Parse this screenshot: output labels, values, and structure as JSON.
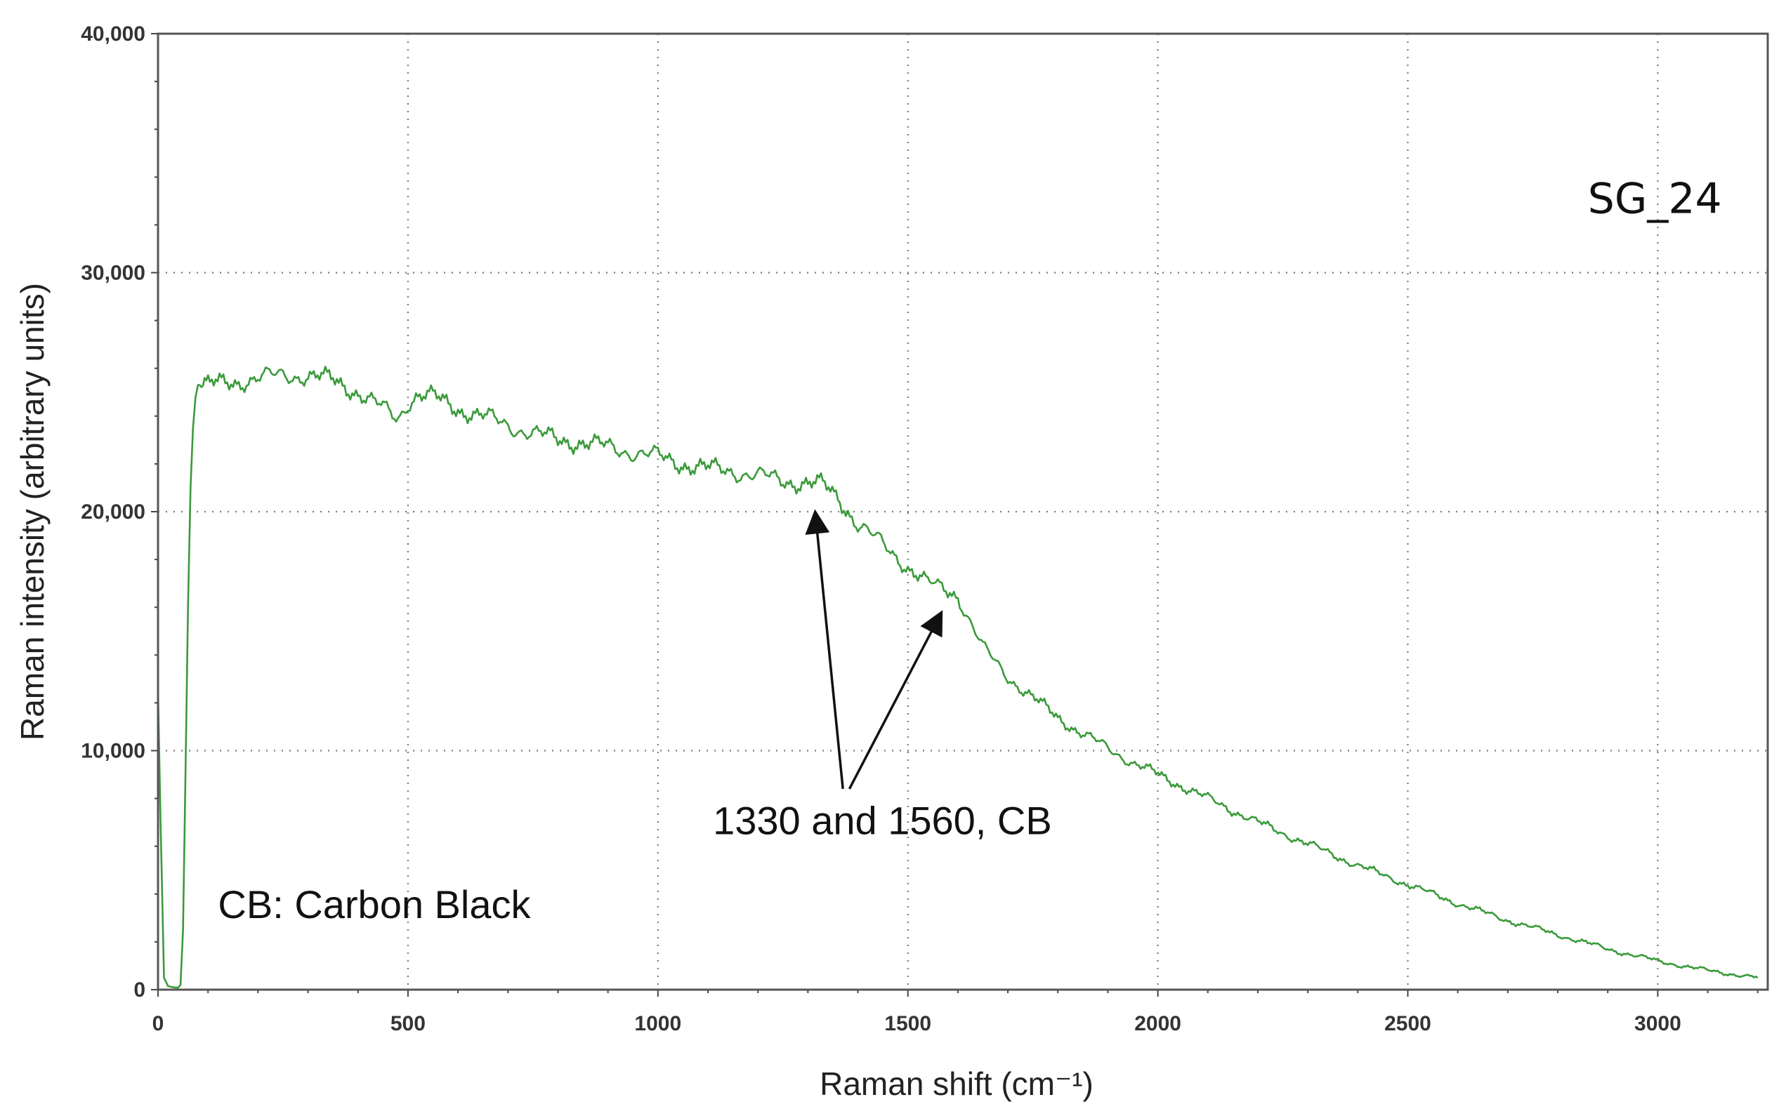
{
  "chart_data": {
    "type": "line",
    "title": "",
    "xlabel": "Raman shift (cm⁻¹)",
    "ylabel": "Raman intensity (arbitrary units)",
    "xlim": [
      0,
      3220
    ],
    "ylim": [
      0,
      40000
    ],
    "x_ticks": [
      0,
      500,
      1000,
      1500,
      2000,
      2500,
      3000
    ],
    "x_tick_labels": [
      "0",
      "500",
      "1000",
      "1500",
      "2000",
      "2500",
      "3000"
    ],
    "y_ticks": [
      0,
      10000,
      20000,
      30000,
      40000
    ],
    "y_tick_labels": [
      "0",
      "10,000",
      "20,000",
      "30,000",
      "40,000"
    ],
    "grid": true,
    "series": [
      {
        "name": "SG_24",
        "color": "#3a9a3a",
        "x": [
          0,
          5,
          12,
          20,
          30,
          40,
          45,
          50,
          55,
          60,
          65,
          70,
          75,
          80,
          90,
          100,
          150,
          200,
          250,
          300,
          350,
          400,
          450,
          480,
          500,
          520,
          550,
          600,
          650,
          700,
          750,
          800,
          850,
          900,
          950,
          1000,
          1050,
          1100,
          1150,
          1200,
          1250,
          1300,
          1330,
          1360,
          1400,
          1450,
          1500,
          1540,
          1580,
          1600,
          1620,
          1650,
          1700,
          1750,
          1800,
          1850,
          1900,
          1950,
          2000,
          2050,
          2100,
          2200,
          2300,
          2400,
          2500,
          2600,
          2700,
          2800,
          2900,
          3000,
          3100,
          3200
        ],
        "y": [
          12500,
          7000,
          500,
          150,
          100,
          80,
          200,
          2500,
          9000,
          16000,
          21000,
          23500,
          24800,
          25300,
          25300,
          25300,
          25400,
          25600,
          25700,
          25700,
          25500,
          25000,
          24300,
          23900,
          24600,
          24900,
          24800,
          24300,
          24000,
          23600,
          23300,
          23000,
          22900,
          22700,
          22500,
          22300,
          22000,
          21800,
          21700,
          21500,
          21300,
          21200,
          21100,
          20600,
          19500,
          18600,
          17700,
          17000,
          16700,
          16500,
          15600,
          14300,
          13100,
          12200,
          11400,
          10700,
          10100,
          9500,
          9000,
          8500,
          8000,
          7000,
          6100,
          5200,
          4400,
          3600,
          2900,
          2300,
          1700,
          1200,
          800,
          500
        ]
      }
    ],
    "annotations": [
      {
        "text": "SG_24",
        "x": 2860,
        "y": 32500
      },
      {
        "text": "CB: Carbon Black",
        "x": 120,
        "y": 3000
      },
      {
        "text": "1330  and 1560, CB",
        "x": 1110,
        "y": 6500
      }
    ],
    "arrows": [
      {
        "from": [
          1370,
          8400
        ],
        "to": [
          1315,
          19900
        ]
      },
      {
        "from": [
          1383,
          8400
        ],
        "to": [
          1565,
          15700
        ]
      }
    ]
  }
}
